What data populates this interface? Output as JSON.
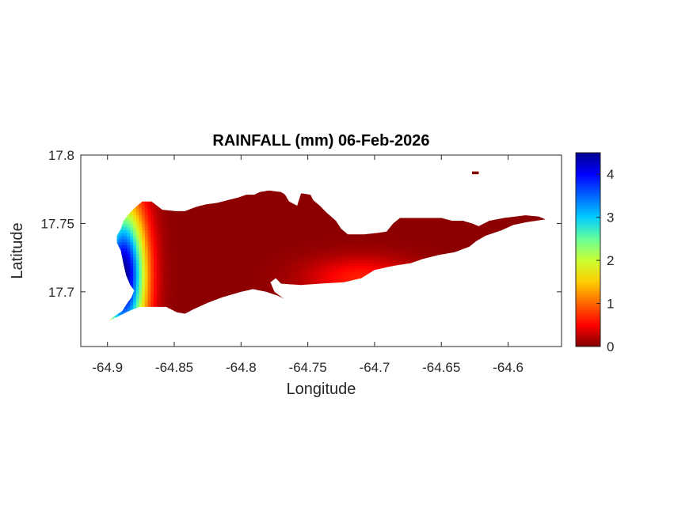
{
  "chart_data": {
    "type": "heatmap",
    "title": "RAINFALL (mm) 06-Feb-2026",
    "xlabel": "Longitude",
    "ylabel": "Latitude",
    "xlim": [
      -64.92,
      -64.56
    ],
    "ylim": [
      17.66,
      17.8
    ],
    "xticks": [
      -64.9,
      -64.85,
      -64.8,
      -64.75,
      -64.7,
      -64.65,
      -64.6
    ],
    "xtick_labels": [
      "-64.9",
      "-64.85",
      "-64.8",
      "-64.75",
      "-64.7",
      "-64.65",
      "-64.6"
    ],
    "yticks": [
      17.7,
      17.75,
      17.8
    ],
    "ytick_labels": [
      "17.7",
      "17.75",
      "17.8"
    ],
    "colormap": "jet",
    "colorbar": {
      "range": [
        0,
        4.5
      ],
      "ticks": [
        0,
        1,
        2,
        3,
        4
      ],
      "tick_labels": [
        "0",
        "1",
        "2",
        "3",
        "4"
      ],
      "placement": "right"
    },
    "value_range": [
      0,
      4.5
    ],
    "max_rainfall_location": {
      "lon": -64.888,
      "lat": 17.712,
      "value": 4.5
    },
    "secondary_max_location": {
      "lon": -64.71,
      "lat": 17.71,
      "value": 0.6
    },
    "island_outline_lonlat": [
      [
        -64.899,
        17.679
      ],
      [
        -64.895,
        17.682
      ],
      [
        -64.889,
        17.686
      ],
      [
        -64.885,
        17.692
      ],
      [
        -64.882,
        17.696
      ],
      [
        -64.88,
        17.701
      ],
      [
        -64.883,
        17.705
      ],
      [
        -64.886,
        17.712
      ],
      [
        -64.888,
        17.72
      ],
      [
        -64.89,
        17.73
      ],
      [
        -64.893,
        17.736
      ],
      [
        -64.893,
        17.741
      ],
      [
        -64.89,
        17.746
      ],
      [
        -64.888,
        17.752
      ],
      [
        -64.884,
        17.757
      ],
      [
        -64.88,
        17.761
      ],
      [
        -64.874,
        17.766
      ],
      [
        -64.867,
        17.766
      ],
      [
        -64.859,
        17.76
      ],
      [
        -64.849,
        17.759
      ],
      [
        -64.842,
        17.759
      ],
      [
        -64.834,
        17.762
      ],
      [
        -64.826,
        17.764
      ],
      [
        -64.818,
        17.765
      ],
      [
        -64.81,
        17.767
      ],
      [
        -64.802,
        17.769
      ],
      [
        -64.796,
        17.771
      ],
      [
        -64.79,
        17.771
      ],
      [
        -64.786,
        17.773
      ],
      [
        -64.779,
        17.774
      ],
      [
        -64.77,
        17.773
      ],
      [
        -64.767,
        17.771
      ],
      [
        -64.764,
        17.766
      ],
      [
        -64.758,
        17.763
      ],
      [
        -64.755,
        17.772
      ],
      [
        -64.748,
        17.771
      ],
      [
        -64.746,
        17.767
      ],
      [
        -64.741,
        17.763
      ],
      [
        -64.736,
        17.758
      ],
      [
        -64.729,
        17.752
      ],
      [
        -64.725,
        17.746
      ],
      [
        -64.72,
        17.742
      ],
      [
        -64.708,
        17.742
      ],
      [
        -64.698,
        17.743
      ],
      [
        -64.691,
        17.744
      ],
      [
        -64.686,
        17.75
      ],
      [
        -64.681,
        17.754
      ],
      [
        -64.67,
        17.754
      ],
      [
        -64.65,
        17.754
      ],
      [
        -64.642,
        17.752
      ],
      [
        -64.634,
        17.752
      ],
      [
        -64.627,
        17.75
      ],
      [
        -64.622,
        17.748
      ],
      [
        -64.614,
        17.752
      ],
      [
        -64.603,
        17.754
      ],
      [
        -64.587,
        17.756
      ],
      [
        -64.577,
        17.755
      ],
      [
        -64.572,
        17.753
      ],
      [
        -64.586,
        17.751
      ],
      [
        -64.596,
        17.749
      ],
      [
        -64.605,
        17.745
      ],
      [
        -64.617,
        17.741
      ],
      [
        -64.624,
        17.737
      ],
      [
        -64.629,
        17.733
      ],
      [
        -64.64,
        17.729
      ],
      [
        -64.652,
        17.727
      ],
      [
        -64.664,
        17.724
      ],
      [
        -64.673,
        17.721
      ],
      [
        -64.686,
        17.719
      ],
      [
        -64.7,
        17.716
      ],
      [
        -64.71,
        17.71
      ],
      [
        -64.723,
        17.707
      ],
      [
        -64.741,
        17.706
      ],
      [
        -64.755,
        17.705
      ],
      [
        -64.77,
        17.706
      ],
      [
        -64.774,
        17.71
      ],
      [
        -64.778,
        17.707
      ],
      [
        -64.775,
        17.7
      ],
      [
        -64.768,
        17.695
      ],
      [
        -64.764,
        17.693
      ],
      [
        -64.772,
        17.697
      ],
      [
        -64.781,
        17.7
      ],
      [
        -64.791,
        17.702
      ],
      [
        -64.8,
        17.7
      ],
      [
        -64.814,
        17.696
      ],
      [
        -64.825,
        17.692
      ],
      [
        -64.836,
        17.687
      ],
      [
        -64.842,
        17.684
      ],
      [
        -64.848,
        17.685
      ],
      [
        -64.856,
        17.689
      ],
      [
        -64.865,
        17.689
      ],
      [
        -64.876,
        17.689
      ],
      [
        -64.884,
        17.686
      ],
      [
        -64.892,
        17.682
      ]
    ],
    "islet_outline_lonlat": [
      [
        -64.627,
        17.788
      ],
      [
        -64.622,
        17.788
      ],
      [
        -64.622,
        17.786
      ],
      [
        -64.627,
        17.786
      ]
    ]
  }
}
